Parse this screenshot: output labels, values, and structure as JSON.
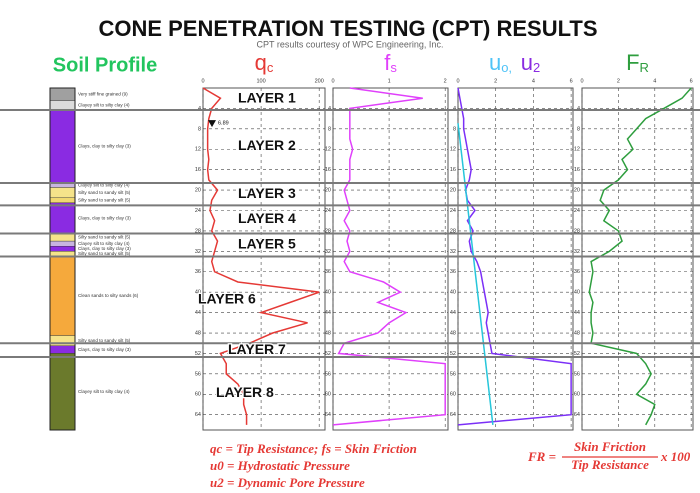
{
  "title": "CONE PENETRATION TESTING (CPT) RESULTS",
  "subtitle": "CPT results courtesy of WPC Engineering, Inc.",
  "soil_profile": {
    "title": "Soil Profile",
    "layers": [
      {
        "top": 0,
        "bottom": 2.5,
        "color": "#a0a0a0",
        "label": "Very stiff fine grained (9)"
      },
      {
        "top": 2.5,
        "bottom": 4.3,
        "color": "#dcdcdc",
        "label": "Clayey silt to silty clay (4)"
      },
      {
        "top": 4.3,
        "bottom": 18.6,
        "color": "#8a2be2",
        "label": "Clays, clay to silty clay (3)"
      },
      {
        "top": 18.6,
        "bottom": 19.5,
        "color": "#c8b4e0",
        "label": "Clayey silt to silty clay (4)"
      },
      {
        "top": 19.5,
        "bottom": 21.5,
        "color": "#f5e38a",
        "label": "Silty sand to sandy silt (5)"
      },
      {
        "top": 21.5,
        "bottom": 22.5,
        "color": "#f0d870",
        "label": "Silty sand to sandy silt (5)"
      },
      {
        "top": 22.5,
        "bottom": 28.5,
        "color": "#8a2be2",
        "label": "Clays, clay to silty clay (3)"
      },
      {
        "top": 28.5,
        "bottom": 30,
        "color": "#f5e38a",
        "label": "Silty sand to sandy silt (5)"
      },
      {
        "top": 30,
        "bottom": 31,
        "color": "#c8b4e0",
        "label": "Clayey silt to silty clay (4)"
      },
      {
        "top": 31,
        "bottom": 32,
        "color": "#8a2be2",
        "label": "Clays, clay to silty clay (3)"
      },
      {
        "top": 32,
        "bottom": 33,
        "color": "#f5e38a",
        "label": "Silty sand to sandy silt (5)"
      },
      {
        "top": 33,
        "bottom": 48.5,
        "color": "#f5a93c",
        "label": "Clean sands to silty sands (6)"
      },
      {
        "top": 48.5,
        "bottom": 50.5,
        "color": "#f5e38a",
        "label": "Silty sand to sandy silt (5)"
      },
      {
        "top": 50.5,
        "bottom": 52,
        "color": "#8a2be2",
        "label": "Clays, clay to silty clay (3)"
      },
      {
        "top": 52,
        "bottom": 67,
        "color": "#6b7a2c",
        "label": "Clayey silt to silty clay (4)"
      }
    ]
  },
  "depth": {
    "ylim": [
      0,
      67
    ],
    "ticks": [
      4,
      8,
      12,
      16,
      20,
      24,
      28,
      32,
      36,
      40,
      44,
      48,
      52,
      56,
      60,
      64
    ]
  },
  "layers": {
    "names": [
      "LAYER 1",
      "LAYER 2",
      "LAYER 3",
      "LAYER 4",
      "LAYER 5",
      "LAYER 6",
      "LAYER 7",
      "LAYER 8"
    ],
    "boundaries": [
      4.3,
      18.6,
      23,
      28.5,
      33,
      50,
      52.7
    ]
  },
  "water_table": {
    "depth": 6.89
  },
  "panels": [
    {
      "header": [
        {
          "symbol": "q",
          "sub": "c",
          "color": "#e53935"
        }
      ],
      "xlim": [
        0,
        210
      ],
      "xticks": [
        0,
        100,
        200
      ],
      "series": [
        {
          "color": "#e53935",
          "depth": [
            0,
            2,
            4,
            6,
            8,
            10,
            12,
            14,
            16,
            18,
            20,
            22,
            24,
            26,
            28,
            30,
            32,
            34,
            36,
            38,
            40,
            42,
            44,
            46,
            48,
            50,
            52,
            54,
            56,
            58,
            60,
            62,
            64,
            66
          ],
          "values": [
            0,
            30,
            15,
            10,
            8,
            8,
            8,
            10,
            8,
            10,
            25,
            15,
            12,
            20,
            15,
            25,
            20,
            15,
            20,
            60,
            200,
            150,
            100,
            180,
            120,
            80,
            30,
            40,
            40,
            60,
            70,
            70,
            75,
            75
          ]
        }
      ]
    },
    {
      "header": [
        {
          "symbol": "f",
          "sub": "s",
          "color": "#e040fb"
        }
      ],
      "xlim": [
        0,
        2.05
      ],
      "xticks": [
        0,
        1,
        2
      ],
      "series": [
        {
          "color": "#e040fb",
          "depth": [
            0,
            2,
            4,
            6,
            8,
            10,
            12,
            14,
            16,
            18,
            20,
            22,
            24,
            26,
            28,
            30,
            32,
            34,
            36,
            38,
            40,
            42,
            44,
            46,
            48,
            50,
            52,
            54,
            56,
            58,
            60,
            62,
            64,
            66
          ],
          "values": [
            0.3,
            1.6,
            0.3,
            0.3,
            0.3,
            0.3,
            0.35,
            0.3,
            0.3,
            0.3,
            0.2,
            0.25,
            0.3,
            0.2,
            0.3,
            0.25,
            0.3,
            0.2,
            0.3,
            0.9,
            1.2,
            0.8,
            1.3,
            1.0,
            0.8,
            0.2,
            0.1,
            2,
            2,
            2,
            2,
            2,
            2,
            0
          ]
        }
      ]
    },
    {
      "header": [
        {
          "symbol": "u",
          "sub": "o,",
          "color": "#4fc3f7"
        },
        {
          "symbol": "u",
          "sub": "2",
          "color": "#8a2be2"
        }
      ],
      "xlim": [
        0,
        6.1
      ],
      "xticks": [
        0,
        2,
        4,
        6
      ],
      "series": [
        {
          "color": "#7b2ff7",
          "depth": [
            0,
            2,
            4,
            6,
            8,
            10,
            12,
            14,
            16,
            18,
            20,
            22,
            24,
            26,
            28,
            30,
            32,
            34,
            36,
            38,
            40,
            42,
            44,
            46,
            48,
            50,
            52,
            54,
            56,
            58,
            60,
            62,
            64,
            66
          ],
          "values": [
            0,
            0.1,
            0.2,
            0.3,
            0.3,
            0.4,
            0.5,
            0.6,
            0.7,
            0.6,
            0.4,
            0.5,
            0.9,
            0.5,
            0.8,
            0.6,
            0.7,
            1.0,
            1.2,
            1.3,
            1.4,
            1.5,
            1.6,
            1.5,
            1.6,
            1.7,
            1.8,
            6,
            6,
            6,
            6,
            6,
            6,
            0
          ]
        },
        {
          "color": "#26c6da",
          "depth": [
            6.89,
            66
          ],
          "values": [
            0,
            1.85
          ]
        }
      ]
    },
    {
      "header": [
        {
          "symbol": "F",
          "sub": "R",
          "color": "#2e9e3e"
        }
      ],
      "xlim": [
        0,
        6.1
      ],
      "xticks": [
        0,
        2,
        4,
        6
      ],
      "series": [
        {
          "color": "#2e9e3e",
          "depth": [
            0,
            2,
            4,
            6,
            8,
            10,
            12,
            14,
            16,
            18,
            20,
            22,
            24,
            26,
            28,
            30,
            32,
            34,
            36,
            38,
            40,
            42,
            44,
            46,
            48,
            50,
            52,
            54,
            56,
            58,
            60,
            62,
            64,
            66
          ],
          "values": [
            6,
            5.5,
            4.5,
            3.5,
            3,
            2.5,
            2.8,
            2.2,
            2.5,
            2,
            1.2,
            1,
            1.5,
            1.2,
            2,
            2.2,
            1.5,
            0.5,
            0.6,
            0.5,
            0.4,
            0.6,
            0.5,
            0.5,
            0.6,
            0.5,
            3,
            3.5,
            3.8,
            3.5,
            3,
            4,
            3.8,
            3.5
          ]
        }
      ]
    }
  ],
  "notes": [
    "qc = Tip Resistance; fs = Skin Friction",
    "u0 = Hydrostatic Pressure",
    "u2 = Dynamic Pore Pressure"
  ],
  "fr_formula": {
    "lhs": "FR =",
    "numerator": "Skin Friction",
    "denominator": "Tip Resistance",
    "factor": "x 100"
  }
}
